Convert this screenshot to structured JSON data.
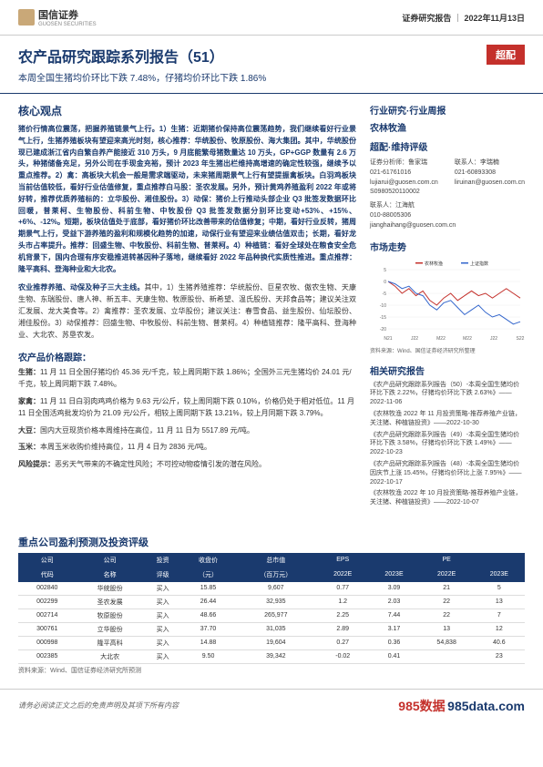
{
  "header": {
    "company": "国信证券",
    "company_en": "GUOSEN SECURITIES",
    "report_type": "证券研究报告",
    "date": "2022年11月13日"
  },
  "title": "农产品研究跟踪系列报告（51）",
  "rating_badge": "超配",
  "subtitle": "本周全国生猪均价环比下跌 7.48%，仔猪均价环比下跌 1.86%",
  "core_view_h": "核心观点",
  "core_para1": "猪价行情高位震荡，把握养殖链景气上行。1）生猪：近期猪价保持高位震荡趋势，我们继续看好行业景气上行，生猪养殖板块有望迎来高光时刻，核心推荐：华统股份、牧原股份、海大集团。其中，华统股份现已建成浙江省内自繁自养产能接近 310 万头，9 月底能繁母猪数量达 10 万头，GP+GGP 数量有 2.6 万头，种猪储备充足，另外公司在手现金充裕，预计 2023 年生猪出栏维持高增速的确定性较强，继续予以重点推荐。2）禽：高板块大机会一般是需求端驱动，未来猪周期景气上行有望提振禽板块。白羽鸡板块当前估值较低，看好行业估值修复，重点推荐白马股：圣农发展。另外，预计黄鸡养殖盈利 2022 年或将好转，推荐优质养殖标的：立华股份、湘佳股份。3）动保：猪价上行推动头部企业 Q3 批签发数据环比回暖，普莱柯、生物股份、科前生物、中牧股份 Q3 批签发数据分别环比变动+53%、+15%、+6%、-12%。短期，板块估值处于底部，看好猪价环比改善带来的估值修复；中期，看好行业反转，猪周期景气上行，受益下游养殖的盈利和规模化趋势的加速，动保行业有望迎来业绩估值双击；长期，看好龙头市占率提升。推荐：回盛生物、中牧股份、科前生物、普莱柯。4）种植链：看好全球处在粮食安全危机背景下，国内合理有序安稳推进转基因种子落地，继续看好 2022 年品种换代实质性推进。重点推荐：隆平高科、登海种业和大北农。",
  "core_para2_h": "农业推荐养殖、动保及种子三大主线。",
  "core_para2": "其中，1）生猪养殖推荐：华统股份、巨星农牧、傲农生物、天康生物、东瑞股份、唐人神、新五丰、天康生物、牧原股份、新希望、温氏股份、天邦食品等；建议关注双汇发展、龙大美食等。2）禽推荐：圣农发展、立华股份；建议关注：春雪食品、益生股份、仙坛股份、湘佳股份。3）动保推荐：回盛生物、中牧股份、科前生物、普莱柯。4）种植链推荐：隆平高科、登海种业、大北农、苏垦农发。",
  "price_track_h": "农产品价格跟踪：",
  "prices": {
    "pig_h": "生猪：",
    "pig": "11 月 11 日全国仔猪均价 45.36 元/千克，较上周同期下跌 1.86%；全国外三元生猪均价 24.01 元/千克，较上周同期下跌 7.48%。",
    "poultry_h": "家禽：",
    "poultry": "11 月 11 日白羽肉鸡鸡价格为 9.63 元/公斤，较上周同期下跌 0.10%，价格仍处于相对低位。11 月 11 日全国活鸡批发均价为 21.09 元/公斤，相较上周同期下跌 13.21%，较上月同期下跌 3.79%。",
    "soy_h": "大豆：",
    "soy": "国内大豆现货价格本周维持在高位，11 月 11 日为 5517.89 元/吨。",
    "corn_h": "玉米：",
    "corn": "本周玉米收购价维持高位，11 月 4 日为 2836 元/吨。"
  },
  "risk_h": "风险提示：",
  "risk": "恶劣天气带来的不确定性风险；不可控动物疫情引发的潜在风险。",
  "right": {
    "category_h": "行业研究·行业周报",
    "industry": "农林牧渔",
    "rating": "超配·维持评级",
    "analyst1_label": "证券分析师：鲁家瑞",
    "analyst1_phone": "021-61761016",
    "analyst1_email": "lujiarui@guosen.com.cn",
    "analyst1_cert": "S0980520110002",
    "contact_label": "联系人：李瑞楠",
    "contact_phone": "021-60893308",
    "contact_email": "liruinan@guosen.com.cn",
    "contact2_label": "联系人：江海航",
    "contact2_phone": "010-88005306",
    "contact2_email": "jianghaihang@guosen.com.cn",
    "market_h": "市场走势",
    "chart": {
      "series": [
        {
          "name": "农林牧渔",
          "color": "#c4302b",
          "data": [
            0,
            -2,
            -5,
            -3,
            -6,
            -4,
            -8,
            -10,
            -7,
            -5,
            -8,
            -6,
            -4,
            -6,
            -5,
            -7,
            -5,
            -3,
            -5,
            -7
          ]
        },
        {
          "name": "上证指数",
          "color": "#3366cc",
          "data": [
            0,
            -1,
            -3,
            -2,
            -5,
            -6,
            -10,
            -12,
            -9,
            -8,
            -11,
            -14,
            -12,
            -10,
            -13,
            -15,
            -14,
            -16,
            -18,
            -17
          ]
        }
      ],
      "xlabels": [
        "N21",
        "J22",
        "M22",
        "M22",
        "J22",
        "S22"
      ],
      "ylim": [
        -20,
        5
      ],
      "yticks": [
        -20,
        -15,
        -10,
        -5,
        0,
        5
      ]
    },
    "chart_note": "资料来源：Wind、国信证券经济研究所整理",
    "related_h": "相关研究报告",
    "related": [
      "《农产品研究跟踪系列报告（50）-本周全国生猪均价环比下跌 2.22%，仔猪均价环比下跌 2.63%》——2022-11-06",
      "《农林牧渔 2022 年 11 月投资策略-推荐养殖产业链，关注猪、种植链投资》——2022-10-30",
      "《农产品研究跟踪系列报告（49）-本周全国生猪均价环比下跌 3.58%，仔猪均价环比下跌 1.49%》——2022-10-23",
      "《农产品研究跟踪系列报告（48）-本周全国生猪均价因庆节上涨 15.45%，仔猪均价环比上涨 7.95%》——2022-10-17",
      "《农林牧渔 2022 年 10 月投资策略-推荐养殖产业链，关注猪、种植链投资》——2022-10-07"
    ]
  },
  "table_h": "重点公司盈利预测及投资评级",
  "table": {
    "columns": [
      "公司",
      "公司",
      "投资",
      "收盘价",
      "总市值",
      "EPS",
      "",
      "PE",
      ""
    ],
    "subcols": [
      "代码",
      "名称",
      "评级",
      "（元）",
      "（百万元）",
      "2022E",
      "2023E",
      "2022E",
      "2023E"
    ],
    "rows": [
      [
        "002840",
        "华统股份",
        "买入",
        "15.85",
        "9,607",
        "0.77",
        "3.09",
        "21",
        "5"
      ],
      [
        "002299",
        "圣农发展",
        "买入",
        "26.44",
        "32,935",
        "1.2",
        "2.03",
        "22",
        "13"
      ],
      [
        "002714",
        "牧原股份",
        "买入",
        "48.66",
        "265,977",
        "2.25",
        "7.44",
        "22",
        "7"
      ],
      [
        "300761",
        "立华股份",
        "买入",
        "37.70",
        "31,035",
        "2.89",
        "3.17",
        "13",
        "12"
      ],
      [
        "000998",
        "隆平高科",
        "买入",
        "14.88",
        "19,604",
        "0.27",
        "0.36",
        "54,838",
        "40.6"
      ],
      [
        "002385",
        "大北农",
        "买入",
        "9.50",
        "39,342",
        "-0.02",
        "0.41",
        "",
        "23"
      ]
    ],
    "note": "资料来源：Wind、国信证券经济研究所预测"
  },
  "footer": {
    "disclaimer": "请务必阅读正文之后的免责声明及其项下所有内容",
    "watermark1": "985数据",
    "watermark2": "985data.com"
  }
}
